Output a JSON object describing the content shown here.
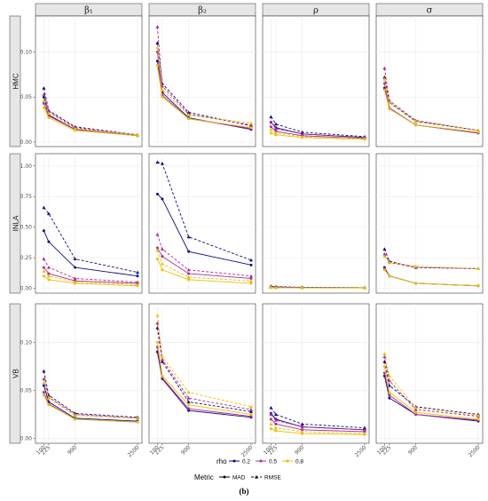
{
  "chart_data": {
    "type": "line",
    "x": [
      100,
      225,
      900,
      2500
    ],
    "xlim": [
      0,
      2500
    ],
    "x_tick_labels": [
      "100",
      "225",
      "900",
      "2500"
    ],
    "columns": [
      "β₁",
      "β₂",
      "ρ",
      "σ"
    ],
    "rows": [
      {
        "label": "HMC",
        "ylim": [
          -0.005,
          0.14
        ],
        "yticks": [
          0.0,
          0.05,
          0.1
        ],
        "ytick_labels": [
          "0.00",
          "0.05",
          "0.10"
        ]
      },
      {
        "label": "INLA",
        "ylim": [
          -0.04,
          1.1
        ],
        "yticks": [
          0.0,
          0.25,
          0.5,
          0.75,
          1.0
        ],
        "ytick_labels": [
          "0.00",
          "0.25",
          "0.50",
          "0.75",
          "1.00"
        ]
      },
      {
        "label": "VB",
        "ylim": [
          -0.005,
          0.14
        ],
        "yticks": [
          0.0,
          0.05,
          0.1
        ],
        "ytick_labels": [
          "0.00",
          "0.05",
          "0.10"
        ]
      }
    ],
    "legend": {
      "rho_title": "rho",
      "rho_values": [
        {
          "label": "0.2",
          "color": "#0d0887"
        },
        {
          "label": "0.5",
          "color": "#b12a90"
        },
        {
          "label": "0.8",
          "color": "#e8c000"
        }
      ],
      "metric_title": "Metric",
      "metrics": [
        {
          "label": "MAD",
          "dash": "solid",
          "marker": "circle"
        },
        {
          "label": "RMSE",
          "dash": "dashed",
          "marker": "triangle"
        }
      ]
    },
    "caption": "(b)",
    "series": [
      {
        "row": "HMC",
        "col": "β₁",
        "rho": "0.2",
        "metric": "MAD",
        "values": [
          0.05,
          0.03,
          0.014,
          0.007
        ]
      },
      {
        "row": "HMC",
        "col": "β₁",
        "rho": "0.2",
        "metric": "RMSE",
        "values": [
          0.06,
          0.035,
          0.017,
          0.008
        ]
      },
      {
        "row": "HMC",
        "col": "β₁",
        "rho": "0.5",
        "metric": "MAD",
        "values": [
          0.043,
          0.029,
          0.014,
          0.007
        ]
      },
      {
        "row": "HMC",
        "col": "β₁",
        "rho": "0.5",
        "metric": "RMSE",
        "values": [
          0.053,
          0.034,
          0.016,
          0.008
        ]
      },
      {
        "row": "HMC",
        "col": "β₁",
        "rho": "0.8",
        "metric": "MAD",
        "values": [
          0.038,
          0.027,
          0.013,
          0.007
        ]
      },
      {
        "row": "HMC",
        "col": "β₁",
        "rho": "0.8",
        "metric": "RMSE",
        "values": [
          0.046,
          0.032,
          0.015,
          0.008
        ]
      },
      {
        "row": "HMC",
        "col": "β₂",
        "rho": "0.2",
        "metric": "MAD",
        "values": [
          0.09,
          0.055,
          0.027,
          0.014
        ]
      },
      {
        "row": "HMC",
        "col": "β₂",
        "rho": "0.2",
        "metric": "RMSE",
        "values": [
          0.11,
          0.065,
          0.033,
          0.018
        ]
      },
      {
        "row": "HMC",
        "col": "β₂",
        "rho": "0.5",
        "metric": "MAD",
        "values": [
          0.1,
          0.052,
          0.026,
          0.015
        ]
      },
      {
        "row": "HMC",
        "col": "β₂",
        "rho": "0.5",
        "metric": "RMSE",
        "values": [
          0.128,
          0.062,
          0.031,
          0.019
        ]
      },
      {
        "row": "HMC",
        "col": "β₂",
        "rho": "0.8",
        "metric": "MAD",
        "values": [
          0.085,
          0.05,
          0.026,
          0.016
        ]
      },
      {
        "row": "HMC",
        "col": "β₂",
        "rho": "0.8",
        "metric": "RMSE",
        "values": [
          0.105,
          0.058,
          0.03,
          0.021
        ]
      },
      {
        "row": "HMC",
        "col": "ρ",
        "rho": "0.2",
        "metric": "MAD",
        "values": [
          0.022,
          0.016,
          0.009,
          0.005
        ]
      },
      {
        "row": "HMC",
        "col": "ρ",
        "rho": "0.2",
        "metric": "RMSE",
        "values": [
          0.028,
          0.02,
          0.011,
          0.006
        ]
      },
      {
        "row": "HMC",
        "col": "ρ",
        "rho": "0.5",
        "metric": "MAD",
        "values": [
          0.017,
          0.012,
          0.007,
          0.004
        ]
      },
      {
        "row": "HMC",
        "col": "ρ",
        "rho": "0.5",
        "metric": "RMSE",
        "values": [
          0.022,
          0.015,
          0.009,
          0.005
        ]
      },
      {
        "row": "HMC",
        "col": "ρ",
        "rho": "0.8",
        "metric": "MAD",
        "values": [
          0.01,
          0.008,
          0.005,
          0.003
        ]
      },
      {
        "row": "HMC",
        "col": "ρ",
        "rho": "0.8",
        "metric": "RMSE",
        "values": [
          0.014,
          0.01,
          0.006,
          0.004
        ]
      },
      {
        "row": "HMC",
        "col": "σ",
        "rho": "0.2",
        "metric": "MAD",
        "values": [
          0.06,
          0.037,
          0.019,
          0.01
        ]
      },
      {
        "row": "HMC",
        "col": "σ",
        "rho": "0.2",
        "metric": "RMSE",
        "values": [
          0.072,
          0.044,
          0.023,
          0.013
        ]
      },
      {
        "row": "HMC",
        "col": "σ",
        "rho": "0.5",
        "metric": "MAD",
        "values": [
          0.065,
          0.038,
          0.019,
          0.01
        ]
      },
      {
        "row": "HMC",
        "col": "σ",
        "rho": "0.5",
        "metric": "RMSE",
        "values": [
          0.082,
          0.046,
          0.024,
          0.013
        ]
      },
      {
        "row": "HMC",
        "col": "σ",
        "rho": "0.8",
        "metric": "MAD",
        "values": [
          0.058,
          0.037,
          0.019,
          0.011
        ]
      },
      {
        "row": "HMC",
        "col": "σ",
        "rho": "0.8",
        "metric": "RMSE",
        "values": [
          0.07,
          0.044,
          0.023,
          0.013
        ]
      },
      {
        "row": "INLA",
        "col": "β₁",
        "rho": "0.2",
        "metric": "MAD",
        "values": [
          0.47,
          0.38,
          0.17,
          0.1
        ]
      },
      {
        "row": "INLA",
        "col": "β₁",
        "rho": "0.2",
        "metric": "RMSE",
        "values": [
          0.66,
          0.61,
          0.24,
          0.13
        ]
      },
      {
        "row": "INLA",
        "col": "β₁",
        "rho": "0.5",
        "metric": "MAD",
        "values": [
          0.17,
          0.12,
          0.06,
          0.04
        ]
      },
      {
        "row": "INLA",
        "col": "β₁",
        "rho": "0.5",
        "metric": "RMSE",
        "values": [
          0.24,
          0.17,
          0.08,
          0.05
        ]
      },
      {
        "row": "INLA",
        "col": "β₁",
        "rho": "0.8",
        "metric": "MAD",
        "values": [
          0.1,
          0.07,
          0.04,
          0.02
        ]
      },
      {
        "row": "INLA",
        "col": "β₁",
        "rho": "0.8",
        "metric": "RMSE",
        "values": [
          0.14,
          0.1,
          0.05,
          0.03
        ]
      },
      {
        "row": "INLA",
        "col": "β₂",
        "rho": "0.2",
        "metric": "MAD",
        "values": [
          0.77,
          0.73,
          0.3,
          0.19
        ]
      },
      {
        "row": "INLA",
        "col": "β₂",
        "rho": "0.2",
        "metric": "RMSE",
        "values": [
          1.03,
          1.02,
          0.42,
          0.23
        ]
      },
      {
        "row": "INLA",
        "col": "β₂",
        "rho": "0.5",
        "metric": "MAD",
        "values": [
          0.33,
          0.26,
          0.12,
          0.08
        ]
      },
      {
        "row": "INLA",
        "col": "β₂",
        "rho": "0.5",
        "metric": "RMSE",
        "values": [
          0.44,
          0.32,
          0.15,
          0.1
        ]
      },
      {
        "row": "INLA",
        "col": "β₂",
        "rho": "0.8",
        "metric": "MAD",
        "values": [
          0.24,
          0.15,
          0.07,
          0.04
        ]
      },
      {
        "row": "INLA",
        "col": "β₂",
        "rho": "0.8",
        "metric": "RMSE",
        "values": [
          0.31,
          0.2,
          0.09,
          0.06
        ]
      },
      {
        "row": "INLA",
        "col": "ρ",
        "rho": "0.2",
        "metric": "MAD",
        "values": [
          0.012,
          0.01,
          0.006,
          0.004
        ]
      },
      {
        "row": "INLA",
        "col": "ρ",
        "rho": "0.2",
        "metric": "RMSE",
        "values": [
          0.016,
          0.013,
          0.008,
          0.005
        ]
      },
      {
        "row": "INLA",
        "col": "ρ",
        "rho": "0.5",
        "metric": "MAD",
        "values": [
          0.008,
          0.007,
          0.004,
          0.003
        ]
      },
      {
        "row": "INLA",
        "col": "ρ",
        "rho": "0.5",
        "metric": "RMSE",
        "values": [
          0.011,
          0.009,
          0.005,
          0.004
        ]
      },
      {
        "row": "INLA",
        "col": "ρ",
        "rho": "0.8",
        "metric": "MAD",
        "values": [
          0.005,
          0.004,
          0.003,
          0.002
        ]
      },
      {
        "row": "INLA",
        "col": "ρ",
        "rho": "0.8",
        "metric": "RMSE",
        "values": [
          0.007,
          0.006,
          0.004,
          0.003
        ]
      },
      {
        "row": "INLA",
        "col": "σ",
        "rho": "0.2",
        "metric": "MAD",
        "values": [
          0.17,
          0.1,
          0.04,
          0.02
        ]
      },
      {
        "row": "INLA",
        "col": "σ",
        "rho": "0.2",
        "metric": "RMSE",
        "values": [
          0.32,
          0.22,
          0.17,
          0.16
        ]
      },
      {
        "row": "INLA",
        "col": "σ",
        "rho": "0.5",
        "metric": "MAD",
        "values": [
          0.16,
          0.1,
          0.04,
          0.02
        ]
      },
      {
        "row": "INLA",
        "col": "σ",
        "rho": "0.5",
        "metric": "RMSE",
        "values": [
          0.28,
          0.21,
          0.17,
          0.16
        ]
      },
      {
        "row": "INLA",
        "col": "σ",
        "rho": "0.8",
        "metric": "MAD",
        "values": [
          0.15,
          0.1,
          0.04,
          0.02
        ]
      },
      {
        "row": "INLA",
        "col": "σ",
        "rho": "0.8",
        "metric": "RMSE",
        "values": [
          0.26,
          0.21,
          0.18,
          0.16
        ]
      },
      {
        "row": "VB",
        "col": "β₁",
        "rho": "0.2",
        "metric": "MAD",
        "values": [
          0.055,
          0.038,
          0.021,
          0.018
        ]
      },
      {
        "row": "VB",
        "col": "β₁",
        "rho": "0.2",
        "metric": "RMSE",
        "values": [
          0.07,
          0.045,
          0.026,
          0.022
        ]
      },
      {
        "row": "VB",
        "col": "β₁",
        "rho": "0.5",
        "metric": "MAD",
        "values": [
          0.048,
          0.036,
          0.02,
          0.017
        ]
      },
      {
        "row": "VB",
        "col": "β₁",
        "rho": "0.5",
        "metric": "RMSE",
        "values": [
          0.062,
          0.043,
          0.025,
          0.021
        ]
      },
      {
        "row": "VB",
        "col": "β₁",
        "rho": "0.8",
        "metric": "MAD",
        "values": [
          0.045,
          0.035,
          0.02,
          0.017
        ]
      },
      {
        "row": "VB",
        "col": "β₁",
        "rho": "0.8",
        "metric": "RMSE",
        "values": [
          0.058,
          0.042,
          0.024,
          0.021
        ]
      },
      {
        "row": "VB",
        "col": "β₂",
        "rho": "0.2",
        "metric": "MAD",
        "values": [
          0.09,
          0.062,
          0.029,
          0.022
        ]
      },
      {
        "row": "VB",
        "col": "β₂",
        "rho": "0.2",
        "metric": "RMSE",
        "values": [
          0.115,
          0.08,
          0.038,
          0.028
        ]
      },
      {
        "row": "VB",
        "col": "β₂",
        "rho": "0.5",
        "metric": "MAD",
        "values": [
          0.095,
          0.063,
          0.031,
          0.023
        ]
      },
      {
        "row": "VB",
        "col": "β₂",
        "rho": "0.5",
        "metric": "RMSE",
        "values": [
          0.12,
          0.082,
          0.042,
          0.03
        ]
      },
      {
        "row": "VB",
        "col": "β₂",
        "rho": "0.8",
        "metric": "MAD",
        "values": [
          0.1,
          0.065,
          0.035,
          0.025
        ]
      },
      {
        "row": "VB",
        "col": "β₂",
        "rho": "0.8",
        "metric": "RMSE",
        "values": [
          0.128,
          0.085,
          0.048,
          0.033
        ]
      },
      {
        "row": "VB",
        "col": "ρ",
        "rho": "0.2",
        "metric": "MAD",
        "values": [
          0.026,
          0.02,
          0.012,
          0.009
        ]
      },
      {
        "row": "VB",
        "col": "ρ",
        "rho": "0.2",
        "metric": "RMSE",
        "values": [
          0.032,
          0.025,
          0.015,
          0.011
        ]
      },
      {
        "row": "VB",
        "col": "ρ",
        "rho": "0.5",
        "metric": "MAD",
        "values": [
          0.02,
          0.015,
          0.009,
          0.007
        ]
      },
      {
        "row": "VB",
        "col": "ρ",
        "rho": "0.5",
        "metric": "RMSE",
        "values": [
          0.025,
          0.019,
          0.012,
          0.009
        ]
      },
      {
        "row": "VB",
        "col": "ρ",
        "rho": "0.8",
        "metric": "MAD",
        "values": [
          0.01,
          0.008,
          0.005,
          0.004
        ]
      },
      {
        "row": "VB",
        "col": "ρ",
        "rho": "0.8",
        "metric": "RMSE",
        "values": [
          0.015,
          0.011,
          0.007,
          0.005
        ]
      },
      {
        "row": "VB",
        "col": "σ",
        "rho": "0.2",
        "metric": "MAD",
        "values": [
          0.065,
          0.042,
          0.025,
          0.018
        ]
      },
      {
        "row": "VB",
        "col": "σ",
        "rho": "0.2",
        "metric": "RMSE",
        "values": [
          0.08,
          0.055,
          0.033,
          0.025
        ]
      },
      {
        "row": "VB",
        "col": "σ",
        "rho": "0.5",
        "metric": "MAD",
        "values": [
          0.068,
          0.045,
          0.025,
          0.019
        ]
      },
      {
        "row": "VB",
        "col": "σ",
        "rho": "0.5",
        "metric": "RMSE",
        "values": [
          0.085,
          0.06,
          0.03,
          0.023
        ]
      },
      {
        "row": "VB",
        "col": "σ",
        "rho": "0.8",
        "metric": "MAD",
        "values": [
          0.075,
          0.048,
          0.027,
          0.02
        ]
      },
      {
        "row": "VB",
        "col": "σ",
        "rho": "0.8",
        "metric": "RMSE",
        "values": [
          0.088,
          0.065,
          0.032,
          0.024
        ]
      }
    ]
  }
}
